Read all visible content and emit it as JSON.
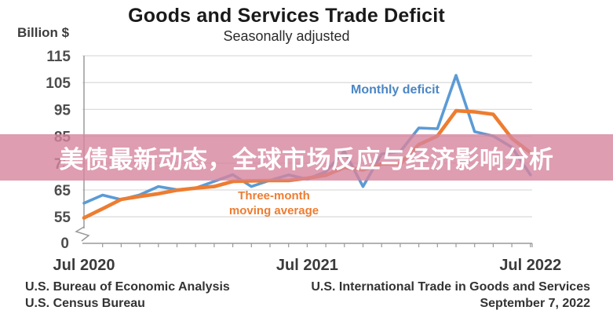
{
  "header": {
    "title": "Goods and Services Trade Deficit",
    "subtitle": "Seasonally adjusted"
  },
  "y_axis_unit": "Billion $",
  "zero_label": "0",
  "overlay_banner": {
    "text": "美债最新动态，全球市场反应与经济影响分析",
    "bg_rgba": "rgba(214,133,158,0.8)",
    "text_color": "#ffffff"
  },
  "series_labels": {
    "monthly": "Monthly deficit",
    "moving_avg_line1": "Three-month",
    "moving_avg_line2": "moving average"
  },
  "footer": {
    "left_line1": "U.S. Bureau of Economic Analysis",
    "left_line2": "U.S. Census Bureau",
    "right_line1": "U.S. International Trade in Goods and Services",
    "right_line2": "September 7, 2022"
  },
  "colors": {
    "monthly_line": "#5b9bd5",
    "moving_avg_line": "#ed7d31",
    "monthly_label": "#4a86c6",
    "grid": "#dcdcdc",
    "axis": "#9a9a9a",
    "tick_label": "#4d4d4d",
    "x_label": "#3b3b3b"
  },
  "chart_data": {
    "type": "line",
    "title": "Goods and Services Trade Deficit",
    "subtitle": "Seasonally adjusted",
    "ylabel": "Billion $",
    "grid": true,
    "legend": "inline-annotations",
    "axis_break_above_zero": true,
    "yticks": [
      115,
      105,
      95,
      85,
      75,
      65,
      55
    ],
    "ylim_shown": [
      55,
      115
    ],
    "x": [
      "Jul 2020",
      "Aug 2020",
      "Sep 2020",
      "Oct 2020",
      "Nov 2020",
      "Dec 2020",
      "Jan 2021",
      "Feb 2021",
      "Mar 2021",
      "Apr 2021",
      "May 2021",
      "Jun 2021",
      "Jul 2021",
      "Aug 2021",
      "Sep 2021",
      "Oct 2021",
      "Nov 2021",
      "Dec 2021",
      "Jan 2022",
      "Feb 2022",
      "Mar 2022",
      "Apr 2022",
      "May 2022",
      "Jun 2022",
      "Jul 2022"
    ],
    "x_tick_labels": [
      {
        "label": "Jul 2020",
        "month_index": 0
      },
      {
        "label": "Jul 2021",
        "month_index": 12
      },
      {
        "label": "Jul 2022",
        "month_index": 24
      }
    ],
    "series": [
      {
        "name": "Monthly deficit",
        "color": "#5b9bd5",
        "values": [
          60.1,
          63.1,
          61.4,
          63.2,
          66.3,
          65.1,
          65.7,
          68.2,
          70.7,
          66.3,
          68.6,
          70.6,
          69.0,
          71.8,
          79.4,
          66.3,
          78.4,
          79.3,
          88.1,
          87.8,
          107.7,
          86.7,
          85.1,
          80.9,
          70.6
        ]
      },
      {
        "name": "Three-month moving average",
        "color": "#ed7d31",
        "values": [
          54.6,
          58.0,
          61.5,
          62.6,
          63.6,
          64.9,
          65.7,
          66.3,
          68.2,
          68.4,
          68.5,
          68.5,
          69.4,
          70.5,
          73.4,
          72.5,
          74.7,
          74.7,
          81.9,
          85.1,
          94.5,
          94.1,
          93.2,
          84.2,
          78.9
        ]
      }
    ]
  }
}
